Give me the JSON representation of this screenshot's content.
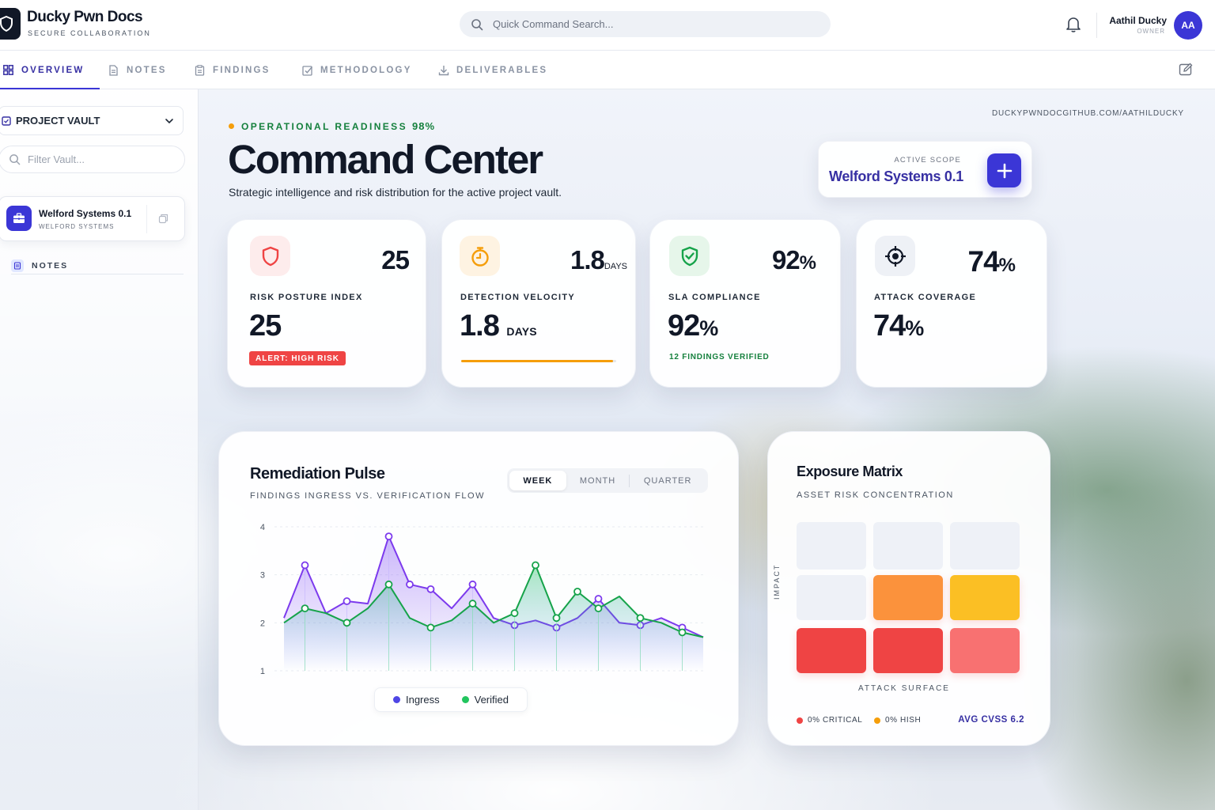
{
  "app": {
    "title": "Ducky Pwn Docs",
    "subtitle": "SECURE COLLABORATION",
    "logo_icon": "shield-icon"
  },
  "search": {
    "placeholder": "Quick Command Search..."
  },
  "user": {
    "name": "Aathil Ducky",
    "role": "OWNER",
    "initials": "AA"
  },
  "nav": {
    "tabs": [
      {
        "label": "OVERVIEW",
        "icon": "grid-icon",
        "active": true
      },
      {
        "label": "NOTES",
        "icon": "document-icon",
        "active": false
      },
      {
        "label": "FINDINGS",
        "icon": "clipboard-icon",
        "active": false
      },
      {
        "label": "METHODOLOGY",
        "icon": "checkbox-icon",
        "active": false
      },
      {
        "label": "DELIVERABLES",
        "icon": "download-icon",
        "active": false
      }
    ]
  },
  "sidebar": {
    "vault_label": "PROJECT VAULT",
    "filter_placeholder": "Filter Vault...",
    "project": {
      "name": "Welford Systems 0.1",
      "client": "WELFORD SYSTEMS"
    },
    "notes_label": "NOTES"
  },
  "header": {
    "readiness_label": "OPERATIONAL READINESS",
    "readiness_value": "98%",
    "title": "Command Center",
    "description": "Strategic intelligence and risk distribution for the active project vault.",
    "repo_link": "DUCKYPWNDOCGITHUB.COM/AATHILDUCKY",
    "scope_label": "ACTIVE SCOPE",
    "scope_value": "Welford Systems 0.1"
  },
  "stats": [
    {
      "label": "RISK POSTURE INDEX",
      "big": "25",
      "value": "25",
      "badge": "ALERT: HIGH RISK",
      "icon": "shield-icon",
      "accent": "#ef4444"
    },
    {
      "label": "DETECTION VELOCITY",
      "big": "1.8",
      "big_unit": "DAYS",
      "value": "1.8",
      "unit": "DAYS",
      "progress": 0.98,
      "icon": "stopwatch-icon",
      "accent": "#f59e0b"
    },
    {
      "label": "SLA COMPLIANCE",
      "big": "92",
      "value": "92",
      "pct": "%",
      "note": "12 FINDINGS VERIFIED",
      "icon": "shield-check-icon",
      "accent": "#16a34a"
    },
    {
      "label": "ATTACK COVERAGE",
      "big": "74",
      "value": "74",
      "pct": "%",
      "icon": "crosshair-icon",
      "accent": "#111827"
    }
  ],
  "pulse": {
    "title": "Remediation Pulse",
    "subtitle": "FINDINGS INGRESS VS. VERIFICATION FLOW",
    "ranges": [
      "WEEK",
      "MONTH",
      "QUARTER"
    ],
    "active_range": "WEEK",
    "legend": {
      "ingress": "Ingress",
      "verified": "Verified"
    }
  },
  "chart_data": {
    "type": "area",
    "title": "Remediation Pulse",
    "subtitle": "FINDINGS INGRESS VS. VERIFICATION FLOW",
    "x": [
      1,
      2,
      3,
      4,
      5,
      6,
      7,
      8,
      9,
      10,
      11,
      12,
      13,
      14,
      15,
      16,
      17,
      18,
      19,
      20,
      21
    ],
    "ylim": [
      1,
      4
    ],
    "yticks": [
      "4",
      "3",
      "2",
      "1"
    ],
    "grid": true,
    "legend": "bottom-center",
    "series": [
      {
        "name": "Ingress",
        "color": "#7c3aed",
        "values": [
          2.1,
          3.2,
          2.2,
          2.45,
          2.4,
          3.8,
          2.8,
          2.7,
          2.3,
          2.8,
          2.1,
          1.95,
          2.05,
          1.9,
          2.1,
          2.5,
          2.0,
          1.95,
          2.1,
          1.9,
          1.7
        ]
      },
      {
        "name": "Verified",
        "color": "#16a34a",
        "values": [
          2.0,
          2.3,
          2.2,
          2.0,
          2.3,
          2.8,
          2.1,
          1.9,
          2.05,
          2.4,
          2.0,
          2.2,
          3.2,
          2.1,
          2.65,
          2.3,
          2.55,
          2.1,
          2.0,
          1.8,
          1.7
        ]
      }
    ]
  },
  "matrix": {
    "title": "Exposure Matrix",
    "subtitle": "ASSET RISK CONCENTRATION",
    "y_label": "IMPACT",
    "x_label": "ATTACK SURFACE",
    "rows": [
      [
        "#eef1f7",
        "#eef1f7",
        "#eef1f7"
      ],
      [
        "#eef1f7",
        "#fb923c",
        "#fbbf24"
      ],
      [
        "#ef4444",
        "#ef4444",
        "#f87171"
      ]
    ],
    "critical": "0% CRITICAL",
    "high": "0% HISH",
    "cvss": "AVG CVSS 6.2"
  }
}
